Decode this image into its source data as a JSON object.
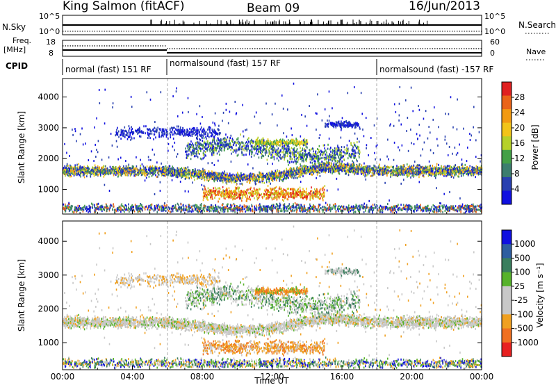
{
  "header": {
    "station": "King Salmon (fitACF)",
    "beam": "Beam 09",
    "date": "16/Jun/2013"
  },
  "top_strip": {
    "left_label": "N.Sky",
    "left_ticks": [
      "10^5",
      "10^0"
    ],
    "right_label": "N.Search",
    "right_ticks": [
      "10^5",
      "10^0"
    ]
  },
  "freq_strip": {
    "left_label_line1": "Freq.",
    "left_label_line2": "[MHz]",
    "left_ticks": [
      "18",
      "8"
    ],
    "right_label": "Nave",
    "right_ticks": [
      "60",
      "0"
    ]
  },
  "cpid": {
    "label": "CPID",
    "segments": [
      "normal (fast) 151 RF",
      "normalsound (fast) 157 RF",
      "normalsound (fast) -157 RF"
    ]
  },
  "colors": {
    "power_scale": [
      "#1010e0",
      "#2840b0",
      "#3c7e6e",
      "#44a047",
      "#b6d12a",
      "#f2c419",
      "#f29a12",
      "#ea6418",
      "#e02020"
    ],
    "velocity_scale": [
      "#1010e0",
      "#2e5ea0",
      "#3a7e5e",
      "#56b22a",
      "#c8c8c8",
      "#c8c8c8",
      "#f0a020",
      "#f07020",
      "#e82020"
    ]
  },
  "chart_data": [
    {
      "type": "heatmap",
      "title": "",
      "xlabel": "Time UT",
      "ylabel": "Slant Range [km]",
      "x_ticks": [
        "00:00",
        "04:00",
        "08:00",
        "12:00",
        "16:00",
        "20:00",
        "00:00"
      ],
      "y_ticks": [
        "1000",
        "2000",
        "3000",
        "4000"
      ],
      "ylim": [
        200,
        4600
      ],
      "colorbar": {
        "label": "Power [dB]",
        "ticks": [
          "4",
          "8",
          "12",
          "16",
          "20",
          "24",
          "28"
        ],
        "range": [
          0,
          32
        ]
      },
      "mode_change_hours": [
        6,
        18
      ]
    },
    {
      "type": "heatmap",
      "title": "",
      "xlabel": "Time UT",
      "ylabel": "Slant Range [km]",
      "x_ticks": [
        "00:00",
        "04:00",
        "08:00",
        "12:00",
        "16:00",
        "20:00",
        "00:00"
      ],
      "y_ticks": [
        "1000",
        "2000",
        "3000",
        "4000"
      ],
      "ylim": [
        200,
        4600
      ],
      "colorbar": {
        "label": "Velocity [m s⁻¹]",
        "ticks": [
          "1000",
          "500",
          "100",
          "25",
          "-25",
          "-100",
          "-500",
          "-1000"
        ]
      },
      "mode_change_hours": [
        6,
        18
      ]
    }
  ]
}
